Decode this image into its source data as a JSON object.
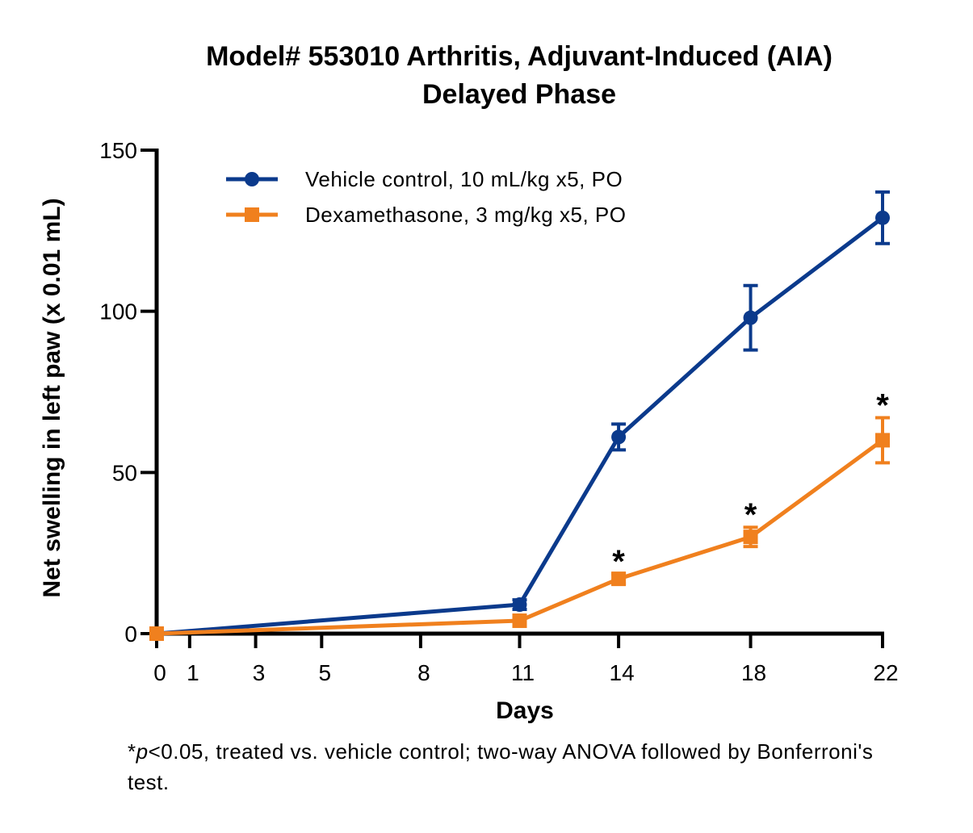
{
  "chart_data": {
    "type": "line",
    "title": "Model# 553010 Arthritis, Adjuvant-Induced (AIA)",
    "subtitle": "Delayed Phase",
    "xlabel": "Days",
    "ylabel": "Net swelling in left paw (x 0.01 mL)",
    "x_ticks": [
      0,
      1,
      3,
      5,
      8,
      11,
      14,
      18,
      22
    ],
    "y_ticks": [
      0,
      50,
      100,
      150
    ],
    "xlim": [
      0,
      22
    ],
    "ylim": [
      0,
      150
    ],
    "legend_position": "top-left",
    "significance_marker": "*",
    "series": [
      {
        "name": "Vehicle control, 10 mL/kg x5, PO",
        "color": "#0b3a8c",
        "marker": "circle",
        "x": [
          0,
          11,
          14,
          18,
          22
        ],
        "y": [
          0,
          9,
          61,
          98,
          129
        ],
        "err": [
          0,
          1.5,
          4,
          10,
          8
        ],
        "significant": [
          false,
          false,
          false,
          false,
          false
        ]
      },
      {
        "name": "Dexamethasone, 3 mg/kg x5, PO",
        "color": "#f0801e",
        "marker": "square",
        "x": [
          0,
          11,
          14,
          18,
          22
        ],
        "y": [
          0,
          4,
          17,
          30,
          60
        ],
        "err": [
          0,
          1,
          1.5,
          3,
          7
        ],
        "significant": [
          false,
          false,
          true,
          true,
          true
        ]
      }
    ]
  },
  "footnote": {
    "p_prefix": "*",
    "p_italic": "p",
    "p_rest": "<0.05, treated vs. vehicle control; two-way ANOVA followed by Bonferroni's test."
  }
}
